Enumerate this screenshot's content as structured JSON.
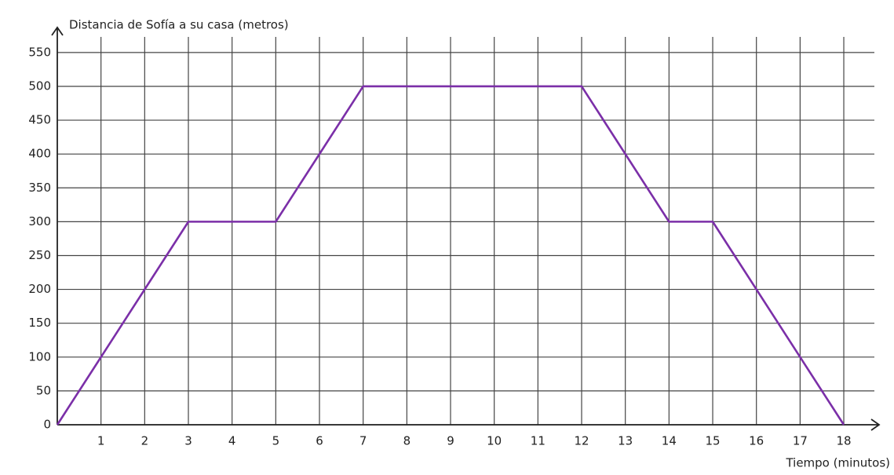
{
  "chart_data": {
    "type": "line",
    "title": "Distancia de Sofía a su casa (metros)",
    "x_label": "Tiempo (minutos)",
    "x": [
      0,
      3,
      5,
      7,
      12,
      14,
      15,
      18
    ],
    "values": [
      0,
      300,
      300,
      500,
      500,
      300,
      300,
      0
    ],
    "color": "#7b2fa8",
    "xlim": [
      0,
      18.7
    ],
    "xticks": [
      1,
      2,
      3,
      4,
      5,
      6,
      7,
      8,
      9,
      10,
      11,
      12,
      13,
      14,
      15,
      16,
      17,
      18
    ],
    "ylim": [
      0,
      580
    ],
    "yticks": [
      0,
      50,
      100,
      150,
      200,
      250,
      300,
      350,
      400,
      450,
      500,
      550
    ],
    "grid": true
  }
}
